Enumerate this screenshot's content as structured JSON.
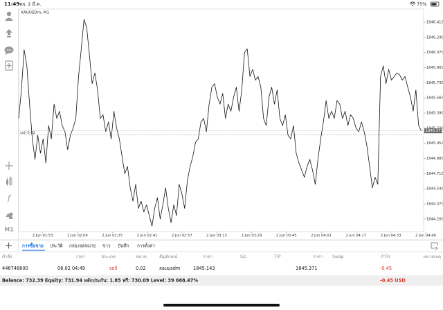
{
  "status_bar": {
    "time": "11:49",
    "date": "พฤ. 2 มี.ค.",
    "battery": "75%"
  },
  "toolbar": {
    "timeframe": "M1"
  },
  "tabs": [
    "การซื้อขาย",
    "ประวัติ",
    "กล่องจดหมาย",
    "ข่าว",
    "บันทึก",
    "การตั้งค่า"
  ],
  "table": {
    "columns": [
      "คำสั่ง",
      "เวลา",
      "ประเภท",
      "ขนาด",
      "สัญลักษณ์",
      "ราคา",
      "S/L",
      "T/P",
      "ราคา",
      "Swap",
      "กำไร",
      "หมายเหตุ"
    ],
    "rows": [
      {
        "order": "446746600",
        "time": "06.02 04:49",
        "type": "sell",
        "size": "0.02",
        "symbol": "xauusdm",
        "open_price": "1845.143",
        "current_price": "1845.371",
        "profit": "-0.45"
      }
    ]
  },
  "account": {
    "summary": "Balance: 732.39 Equity: 731.94 หลักประกัน: 1.85 ฟรี: 730.09 Level: 39 668.47%",
    "profit": "-0.45 USD"
  },
  "chart_data": {
    "type": "line",
    "title": "XAUUSDm, M1",
    "color": "#111111",
    "x": [
      0,
      1.25,
      2.5,
      3.75,
      5,
      6.25,
      7.5,
      8.75,
      10,
      11.25,
      12.5,
      13.75,
      15,
      16.25,
      17.5,
      18.75,
      20,
      21.25,
      22.5,
      23.75,
      25,
      26.25,
      27.5,
      28.75,
      30,
      31.25,
      32.5,
      33.75,
      35,
      36.25,
      37.5,
      38.75,
      40,
      41.25,
      42.5,
      43.75,
      45,
      46.25,
      47.5,
      48.75,
      50,
      51.25,
      52.5,
      53.75,
      55,
      56.25,
      57.5,
      58.75,
      60,
      61.25,
      62.5,
      63.75,
      65,
      66.25,
      67.5,
      68.75,
      70,
      71.25,
      72.5,
      73.75,
      75,
      76.25,
      77.5,
      78.75,
      80,
      81.25,
      82.5,
      83.75,
      85,
      86.25,
      87.5,
      88.75,
      90,
      91.25,
      92.5,
      93.75,
      95,
      96.25,
      97.5,
      98.75,
      100,
      101.25,
      102.5,
      103.75,
      105,
      106.25,
      107.5,
      108.75,
      110,
      111.25,
      112.5,
      113.75,
      115,
      116.25,
      117.5,
      118.75,
      120,
      121.25,
      122.5,
      123.75,
      125,
      126.25,
      127.5,
      128.75,
      130,
      131.25,
      132.5,
      133.75,
      135,
      136.25,
      137.5,
      138.75,
      140,
      141.25,
      142.5,
      143.75,
      145,
      146.25,
      147.5,
      148.75,
      150,
      151.25,
      152.5,
      153.75,
      155,
      156.25,
      157.5,
      158.75,
      160,
      161.25,
      162.5,
      163.75,
      165,
      166.25,
      167.5,
      168.75,
      170,
      171.25,
      172.5,
      173.75,
      175,
      176.25,
      177.5,
      178.75,
      180,
      181.25,
      182.5,
      183.75,
      185
    ],
    "values": [
      1845.33,
      1845.65,
      1846.1,
      1845.92,
      1845.49,
      1845.1,
      1844.87,
      1845.14,
      1844.94,
      1845.1,
      1844.83,
      1845.25,
      1845.1,
      1845.49,
      1845.33,
      1845.41,
      1845.25,
      1845.18,
      1844.98,
      1845.14,
      1845.22,
      1845.33,
      1845.8,
      1846.11,
      1846.44,
      1846.35,
      1846.04,
      1845.72,
      1845.84,
      1845.65,
      1845.33,
      1845.37,
      1845.18,
      1845.29,
      1845.1,
      1845.41,
      1845.22,
      1845.1,
      1844.9,
      1844.71,
      1844.79,
      1844.55,
      1844.4,
      1844.59,
      1844.32,
      1844.4,
      1844.28,
      1844.36,
      1844.24,
      1844.12,
      1844.32,
      1844.44,
      1844.2,
      1844.36,
      1844.55,
      1844.32,
      1844.16,
      1844.36,
      1844.24,
      1844.59,
      1844.48,
      1844.32,
      1844.63,
      1844.79,
      1844.9,
      1845.06,
      1845.1,
      1845.29,
      1845.33,
      1845.18,
      1845.49,
      1845.68,
      1845.72,
      1845.57,
      1845.49,
      1845.61,
      1845.33,
      1845.49,
      1845.41,
      1845.57,
      1845.68,
      1845.41,
      1845.65,
      1846.07,
      1846.11,
      1845.8,
      1845.88,
      1845.76,
      1845.8,
      1845.68,
      1845.33,
      1845.25,
      1845.57,
      1845.68,
      1845.49,
      1845.65,
      1845.33,
      1845.25,
      1845.37,
      1845.14,
      1845.1,
      1845.25,
      1844.94,
      1844.83,
      1844.75,
      1844.67,
      1844.79,
      1844.87,
      1844.75,
      1844.59,
      1844.87,
      1845.1,
      1845.29,
      1845.53,
      1845.33,
      1845.41,
      1845.33,
      1845.53,
      1845.49,
      1845.33,
      1845.41,
      1845.25,
      1845.37,
      1845.33,
      1845.22,
      1845.18,
      1845.29,
      1845.18,
      1845.02,
      1844.79,
      1844.55,
      1844.67,
      1844.59,
      1845.8,
      1845.92,
      1845.72,
      1845.88,
      1845.76,
      1845.8,
      1845.84,
      1845.82,
      1845.76,
      1845.8,
      1845.68,
      1845.57,
      1845.41,
      1845.65,
      1845.25,
      1845.19
    ],
    "xlim": [
      0,
      187
    ],
    "xticks": [
      {
        "value": 11,
        "label": "2 Jun 01:53"
      },
      {
        "value": 27,
        "label": "2 Jun 02:09"
      },
      {
        "value": 43,
        "label": "2 Jun 02:25"
      },
      {
        "value": 59,
        "label": "2 Jun 02:41"
      },
      {
        "value": 75,
        "label": "2 Jun 02:57"
      },
      {
        "value": 91,
        "label": "2 Jun 03:13"
      },
      {
        "value": 107,
        "label": "2 Jun 03:29"
      },
      {
        "value": 123,
        "label": "2 Jun 03:45"
      },
      {
        "value": 139,
        "label": "2 Jun 04:01"
      },
      {
        "value": 155,
        "label": "2 Jun 04:17"
      },
      {
        "value": 171,
        "label": "2 Jun 04:33"
      },
      {
        "value": 187,
        "label": "2 Jun 04:49"
      }
    ],
    "ylim": [
      1844.09,
      1846.55
    ],
    "yticks": [
      {
        "value": 1846.41,
        "label": "1846.410"
      },
      {
        "value": 1846.24,
        "label": "1846.240"
      },
      {
        "value": 1846.07,
        "label": "1846.070"
      },
      {
        "value": 1845.9,
        "label": "1845.900"
      },
      {
        "value": 1845.73,
        "label": "1845.730"
      },
      {
        "value": 1845.56,
        "label": "1845.560"
      },
      {
        "value": 1845.39,
        "label": "1845.390"
      },
      {
        "value": 1845.22,
        "label": "1845.220"
      },
      {
        "value": 1845.05,
        "label": "1845.050"
      },
      {
        "value": 1844.88,
        "label": "1844.880"
      },
      {
        "value": 1844.71,
        "label": "1844.710"
      },
      {
        "value": 1844.54,
        "label": "1844.540"
      },
      {
        "value": 1844.37,
        "label": "1844.370"
      },
      {
        "value": 1844.2,
        "label": "1844.200"
      }
    ],
    "grid": false,
    "order_line": {
      "label": "sell 0.02",
      "value": 1845.143
    },
    "current_price": 1845.371
  }
}
